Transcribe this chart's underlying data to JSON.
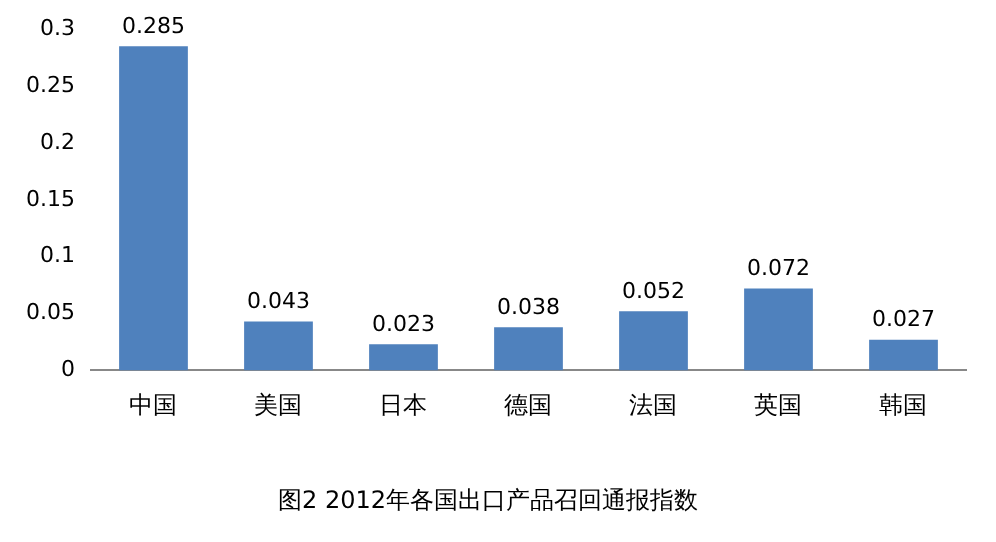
{
  "chart_data": {
    "type": "bar",
    "title": "图2 2012年各国出口产品召回通报指数",
    "categories": [
      "中国",
      "美国",
      "日本",
      "德国",
      "法国",
      "英国",
      "韩国"
    ],
    "values": [
      0.285,
      0.043,
      0.023,
      0.038,
      0.052,
      0.072,
      0.027
    ],
    "color": "#4f81bd",
    "ylim": [
      0,
      0.3
    ],
    "yticks": [
      0,
      0.05,
      0.1,
      0.15,
      0.2,
      0.25,
      0.3
    ],
    "grid": false,
    "data_labels": true
  }
}
